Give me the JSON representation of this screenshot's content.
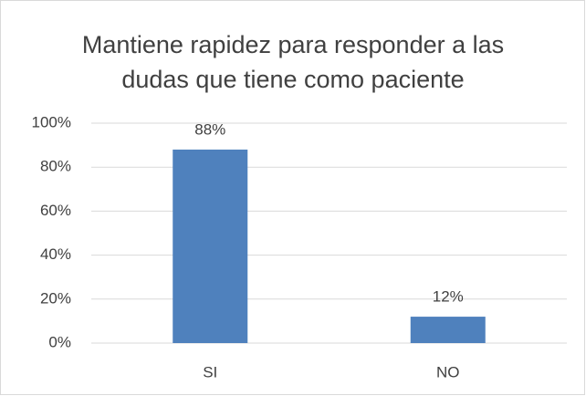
{
  "chart_data": {
    "type": "bar",
    "title": "Mantiene rapidez para responder a las dudas que tiene como paciente",
    "categories": [
      "SI",
      "NO"
    ],
    "values": [
      88,
      12
    ],
    "value_labels": [
      "88%",
      "12%"
    ],
    "color": "#4f81bd",
    "ylim": [
      0,
      100
    ],
    "yticks": [
      {
        "value": 0,
        "label": "0%"
      },
      {
        "value": 20,
        "label": "20%"
      },
      {
        "value": 40,
        "label": "40%"
      },
      {
        "value": 60,
        "label": "60%"
      },
      {
        "value": 80,
        "label": "80%"
      },
      {
        "value": 100,
        "label": "100%"
      }
    ],
    "grid": true
  }
}
